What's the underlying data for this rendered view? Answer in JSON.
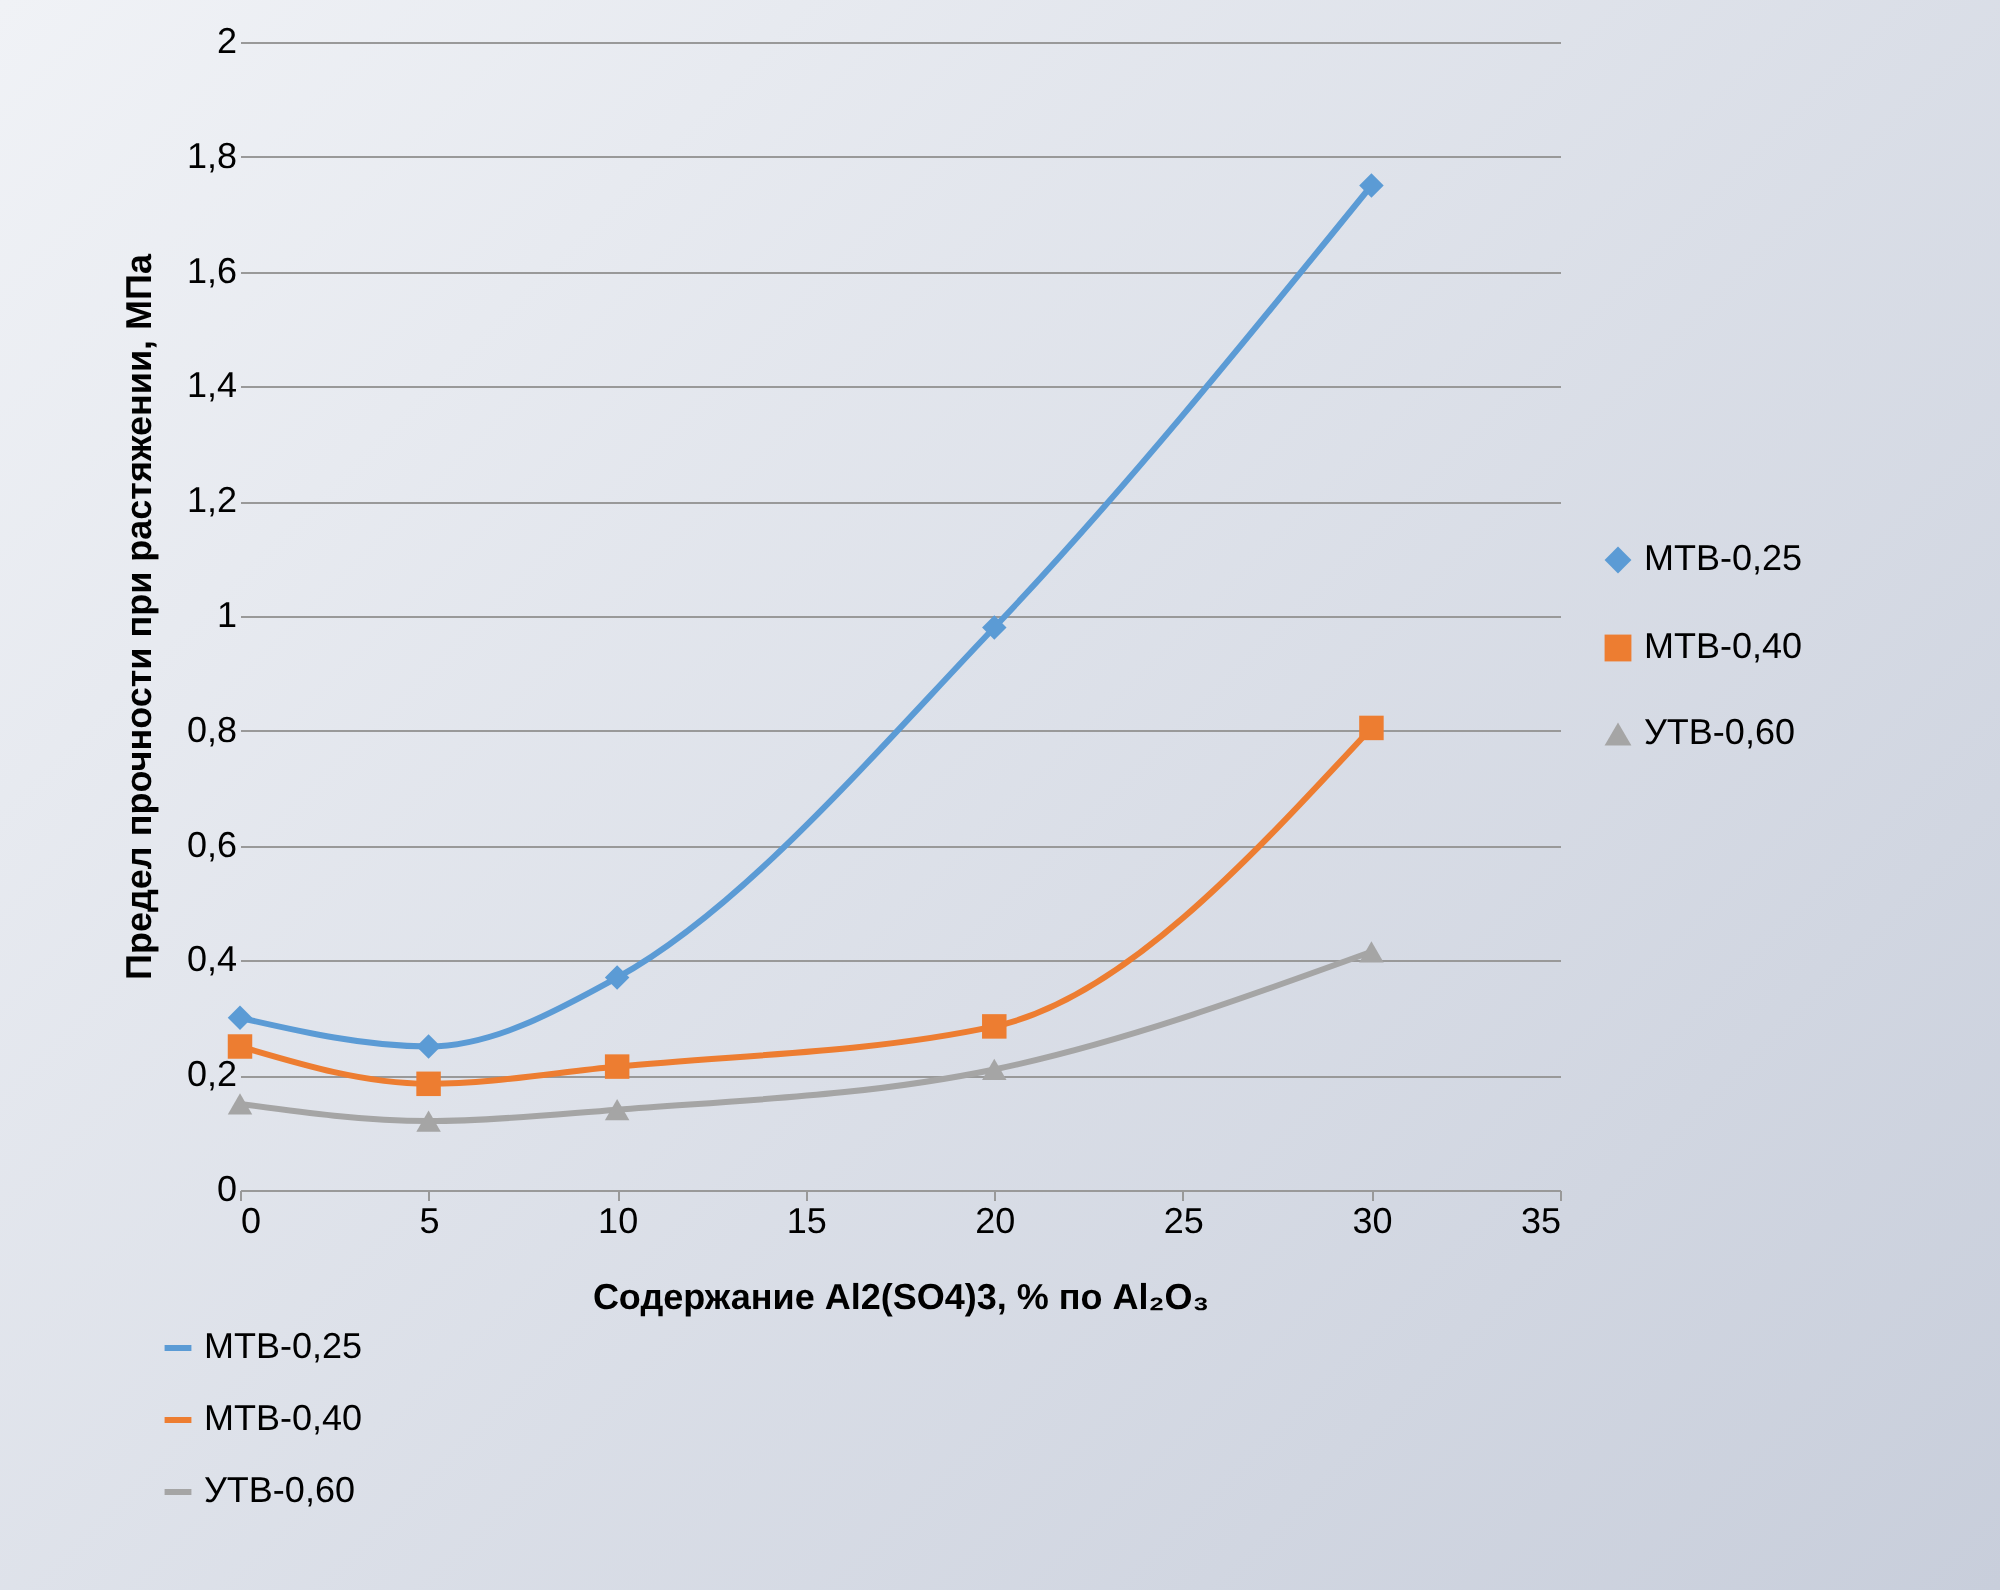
{
  "chart_data": {
    "type": "line",
    "xlabel": "Содержание Al2(SO4)3, % по  Al₂O₃",
    "ylabel": "Предел прочности при растяжении, МПа",
    "x": [
      0,
      5,
      10,
      20,
      30
    ],
    "series": [
      {
        "name": "МТВ-0,25",
        "color": "#5b9bd5",
        "marker": "diamond",
        "values": [
          0.3,
          0.25,
          0.37,
          0.98,
          1.75
        ]
      },
      {
        "name": "МТВ-0,40",
        "color": "#ed7d31",
        "marker": "square",
        "values": [
          0.25,
          0.185,
          0.215,
          0.285,
          0.805
        ]
      },
      {
        "name": "УТВ-0,60",
        "color": "#a5a5a5",
        "marker": "triangle",
        "values": [
          0.15,
          0.12,
          0.14,
          0.21,
          0.415
        ]
      }
    ],
    "xlim": [
      0,
      35
    ],
    "xticks": [
      0,
      5,
      10,
      15,
      20,
      25,
      30,
      35
    ],
    "ylim": [
      0,
      2
    ],
    "yticks": [
      0,
      {
        "value": 0.2,
        "label": "0,2"
      },
      {
        "value": 0.4,
        "label": "0,4"
      },
      {
        "value": 0.6,
        "label": "0,6"
      },
      {
        "value": 0.8,
        "label": "0,8"
      },
      1,
      {
        "value": 1.2,
        "label": "1,2"
      },
      {
        "value": 1.4,
        "label": "1,4"
      },
      {
        "value": 1.6,
        "label": "1,6"
      },
      {
        "value": 1.8,
        "label": "1,8"
      },
      2
    ],
    "grid": "y",
    "legend": [
      "right",
      "bottom left"
    ]
  }
}
